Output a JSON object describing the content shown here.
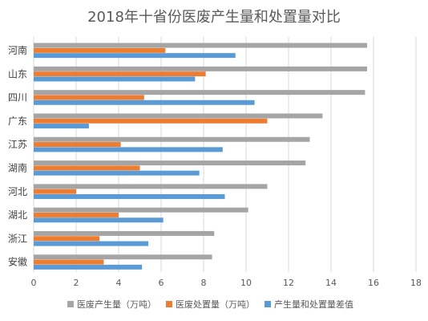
{
  "chart_data": {
    "type": "bar",
    "orientation": "horizontal",
    "title": "2018年十省份医废产生量和处置量对比",
    "categories": [
      "河南",
      "山东",
      "四川",
      "广东",
      "江苏",
      "湖南",
      "河北",
      "湖北",
      "浙江",
      "安徽"
    ],
    "series": [
      {
        "name": "医废产生量（万吨）",
        "color": "#a5a5a5",
        "values": [
          15.7,
          15.7,
          15.6,
          13.6,
          13.0,
          12.8,
          11.0,
          10.1,
          8.5,
          8.4
        ]
      },
      {
        "name": "医废处置量（万吨）",
        "color": "#ed7d31",
        "values": [
          6.2,
          8.1,
          5.2,
          11.0,
          4.1,
          5.0,
          2.0,
          4.0,
          3.1,
          3.3
        ]
      },
      {
        "name": "产生量和处置量差值",
        "color": "#5b9bd5",
        "values": [
          9.5,
          7.6,
          10.4,
          2.6,
          8.9,
          7.8,
          9.0,
          6.1,
          5.4,
          5.1
        ]
      }
    ],
    "xlim": [
      0,
      18
    ],
    "xticks": [
      "0",
      "2",
      "4",
      "6",
      "8",
      "10",
      "12",
      "14",
      "16",
      "18"
    ],
    "grid": true,
    "legend_position": "bottom"
  }
}
